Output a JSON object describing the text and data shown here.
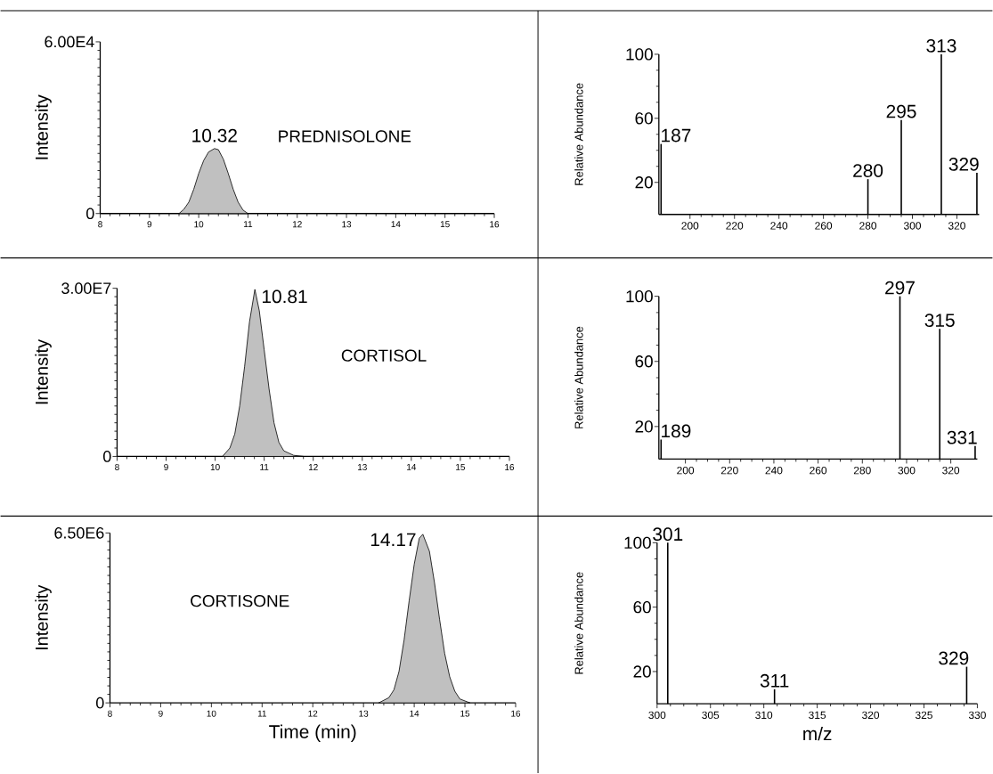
{
  "chart_data": [
    {
      "type": "area",
      "title": "PREDNISOLONE",
      "ylabel": "Intensity",
      "xlim": [
        8,
        16
      ],
      "ylim": [
        0,
        60000
      ],
      "xticks": [
        8,
        9,
        10,
        11,
        12,
        13,
        14,
        15,
        16
      ],
      "yticks": [
        0,
        {
          "value": 60000,
          "label": "6.00E4"
        }
      ],
      "x": [
        9.6,
        9.7,
        9.8,
        9.9,
        10.0,
        10.1,
        10.2,
        10.32,
        10.4,
        10.5,
        10.6,
        10.7,
        10.8,
        10.9,
        11.0
      ],
      "series": [
        {
          "color": "#c0c0c0",
          "values": [
            0,
            1500,
            4000,
            8500,
            14000,
            18500,
            21500,
            22700,
            22300,
            19000,
            14000,
            8500,
            4000,
            1200,
            0
          ]
        }
      ],
      "annotations": [
        {
          "text": "10.32",
          "x": 10.32,
          "y": 22700
        }
      ]
    },
    {
      "type": "bar",
      "ylabel": "Relative Abundance",
      "xlim": [
        186,
        330
      ],
      "ylim": [
        0,
        100
      ],
      "xticks": [
        200,
        220,
        240,
        260,
        280,
        300,
        320
      ],
      "yticks": [
        20,
        60,
        100
      ],
      "x": [
        187,
        280,
        295,
        313,
        329
      ],
      "series": [
        {
          "color": "#000000",
          "values": [
            44,
            22,
            59,
            100,
            26
          ]
        }
      ],
      "annotations": [
        {
          "text": "187",
          "x": 187,
          "y": 44
        },
        {
          "text": "280",
          "x": 280,
          "y": 22
        },
        {
          "text": "295",
          "x": 295,
          "y": 59
        },
        {
          "text": "313",
          "x": 313,
          "y": 100
        },
        {
          "text": "329",
          "x": 329,
          "y": 26
        }
      ]
    },
    {
      "type": "area",
      "title": "CORTISOL",
      "ylabel": "Intensity",
      "xlim": [
        8,
        16
      ],
      "ylim": [
        0,
        30000000
      ],
      "xticks": [
        8,
        9,
        10,
        11,
        12,
        13,
        14,
        15,
        16
      ],
      "yticks": [
        0,
        {
          "value": 30000000,
          "label": "3.00E7"
        }
      ],
      "x": [
        10.15,
        10.3,
        10.4,
        10.5,
        10.6,
        10.7,
        10.81,
        10.9,
        11.0,
        11.1,
        11.2,
        11.3,
        11.4,
        11.6,
        11.8
      ],
      "series": [
        {
          "color": "#c0c0c0",
          "values": [
            0,
            1500000,
            4000000,
            9000000,
            16000000,
            24000000,
            29800000,
            26000000,
            19000000,
            12000000,
            6000000,
            2500000,
            1000000,
            200000,
            0
          ]
        }
      ],
      "annotations": [
        {
          "text": "10.81",
          "x": 10.81,
          "y": 29800000
        }
      ]
    },
    {
      "type": "bar",
      "ylabel": "Relative Abundance",
      "xlim": [
        188,
        332
      ],
      "ylim": [
        0,
        100
      ],
      "xticks": [
        200,
        220,
        240,
        260,
        280,
        300,
        320
      ],
      "yticks": [
        20,
        60,
        100
      ],
      "x": [
        189,
        297,
        315,
        331
      ],
      "series": [
        {
          "color": "#000000",
          "values": [
            12,
            100,
            80,
            8
          ]
        }
      ],
      "annotations": [
        {
          "text": "189",
          "x": 189,
          "y": 12
        },
        {
          "text": "297",
          "x": 297,
          "y": 100
        },
        {
          "text": "315",
          "x": 315,
          "y": 80
        },
        {
          "text": "331",
          "x": 331,
          "y": 8
        }
      ]
    },
    {
      "type": "area",
      "title": "CORTISONE",
      "xlabel": "Time (min)",
      "ylabel": "Intensity",
      "xlim": [
        8,
        16
      ],
      "ylim": [
        0,
        6500000
      ],
      "xticks": [
        8,
        9,
        10,
        11,
        12,
        13,
        14,
        15,
        16
      ],
      "yticks": [
        0,
        {
          "value": 6500000,
          "label": "6.50E6"
        }
      ],
      "x": [
        13.3,
        13.5,
        13.6,
        13.7,
        13.8,
        13.9,
        14.0,
        14.1,
        14.17,
        14.3,
        14.4,
        14.5,
        14.6,
        14.7,
        14.8,
        14.9,
        15.1
      ],
      "series": [
        {
          "color": "#c0c0c0",
          "values": [
            0,
            200000,
            500000,
            1200000,
            2400000,
            3900000,
            5300000,
            6300000,
            6450000,
            5800000,
            4600000,
            3200000,
            1900000,
            1000000,
            450000,
            150000,
            0
          ]
        }
      ],
      "annotations": [
        {
          "text": "14.17",
          "x": 14.17,
          "y": 6450000
        }
      ]
    },
    {
      "type": "bar",
      "xlabel": "m/z",
      "ylabel": "Relative Abundance",
      "xlim": [
        300,
        330
      ],
      "ylim": [
        0,
        100
      ],
      "xticks": [
        300,
        305,
        310,
        315,
        320,
        325,
        330
      ],
      "yticks": [
        20,
        60,
        100
      ],
      "x": [
        301,
        311,
        329
      ],
      "series": [
        {
          "color": "#000000",
          "values": [
            100,
            9,
            23
          ]
        }
      ],
      "annotations": [
        {
          "text": "301",
          "x": 301,
          "y": 100
        },
        {
          "text": "311",
          "x": 311,
          "y": 9
        },
        {
          "text": "329",
          "x": 329,
          "y": 23
        }
      ]
    }
  ]
}
